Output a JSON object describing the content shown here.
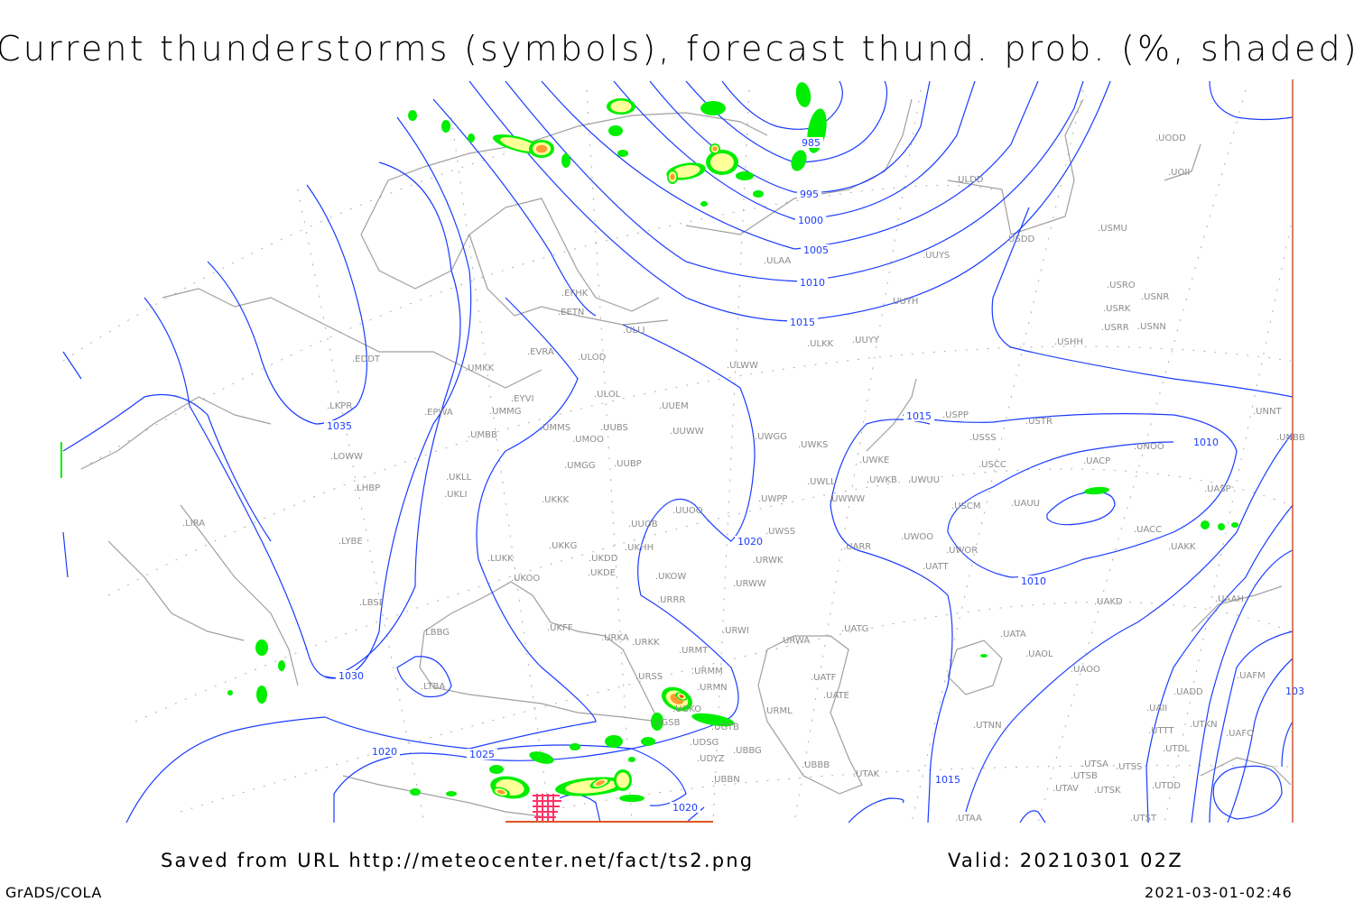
{
  "title": "Current thunderstorms (symbols), forecast thund. prob. (%, shaded)",
  "footer": {
    "source": "Saved from URL http://meteocenter.net/fact/ts2.png",
    "valid": "Valid: 20210301 02Z",
    "software": "GrADS/COLA",
    "timestamp": "2021-03-01-02:46"
  },
  "map": {
    "isobar_color": "#1a3cff",
    "coastline_color": "#a0a0a0",
    "shading_colors": {
      "low": "#00ee00",
      "mid": "#ffff99",
      "high": "#ff9933",
      "very_high": "#dd4411"
    },
    "thunderstorm_symbol_color": "#ff3366",
    "isobar_labels": [
      "985",
      "995",
      "1000",
      "1005",
      "1010",
      "1015",
      "1035",
      "1020",
      "1015",
      "1010",
      "1010",
      "1030",
      "1020",
      "1025",
      "1020",
      "1015",
      "103"
    ],
    "stations": [
      "EFHK",
      "EETN",
      "ULLI",
      "EVRA",
      "ULOD",
      "EDDT",
      "UMKK",
      "ULWW",
      "ULOL",
      "EYVI",
      "UUEM",
      "LKPR",
      "EPWA",
      "UMMG",
      "UMMS",
      "UMOO",
      "UUBS",
      "UUWW",
      "UMBB",
      "LOWW",
      "UMGG",
      "UUBP",
      "UKLL",
      "LHBP",
      "UKLI",
      "UKKK",
      "UUOO",
      "LIRA",
      "UUOB",
      "LYBE",
      "UKKG",
      "UKDD",
      "UKHH",
      "LUKK",
      "UKOO",
      "UKDE",
      "UKOW",
      "LBSF",
      "URRR",
      "LBBG",
      "UKFF",
      "URKA",
      "URKK",
      "URWI",
      "URMT",
      "URMM",
      "URSS",
      "URMN",
      "LTBA",
      "UGKO",
      "UGSB",
      "UGTB",
      "UDSG",
      "UDYZ",
      "UBBG",
      "UBBN",
      "URML",
      "UBBB",
      "UTAK",
      "UATF",
      "UATE",
      "UATG",
      "URWA",
      "URWW",
      "URWK",
      "UWSS",
      "UWPP",
      "UWGG",
      "UWKS",
      "UWKE",
      "UWKB",
      "UWUU",
      "UWLL",
      "UWWW",
      "USCM",
      "UWOO",
      "UWOR",
      "UATT",
      "UARR",
      "USPP",
      "USSS",
      "USTR",
      "USCC",
      "UACP",
      "UNOO",
      "UAUU",
      "UASP",
      "UACC",
      "UAKK",
      "UAKD",
      "UAAH",
      "UNNT",
      "UNBB",
      "UATA",
      "UAOL",
      "UAOO",
      "UAFM",
      "UADD",
      "UAII",
      "UTTT",
      "UTKN",
      "UAFO",
      "UTDL",
      "UTNN",
      "UTSA",
      "UTSS",
      "UTSB",
      "UTAV",
      "UTSK",
      "UTDD",
      "UTAA",
      "UTST",
      "ULAA",
      "ULDD",
      "UUYS",
      "USDD",
      "USMU",
      "UUYH",
      "ULKK",
      "UUYY",
      "USRO",
      "USNR",
      "USRK",
      "USRR",
      "USNN",
      "USHH",
      "UODD",
      "UOII"
    ]
  }
}
